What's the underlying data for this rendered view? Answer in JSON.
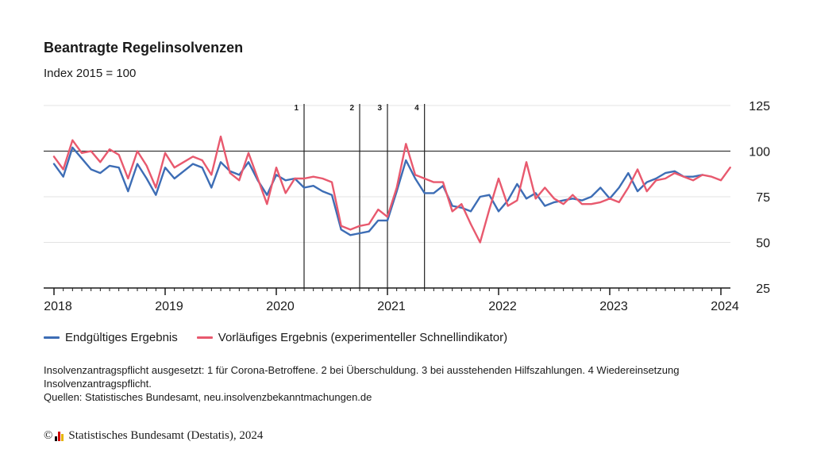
{
  "chart_data": {
    "type": "line",
    "title": "Beantragte Regelinsolvenzen",
    "subtitle": "Index 2015 = 100",
    "x_start": "2018-01",
    "x_tick_labels": [
      "2018",
      "2019",
      "2020",
      "2021",
      "2022",
      "2023",
      "2024"
    ],
    "y_ticks": [
      25,
      50,
      75,
      100,
      125
    ],
    "ylim": [
      25,
      125
    ],
    "y_axis_position": "right",
    "reference_line": 100,
    "annotations": [
      {
        "label": "1",
        "date": "2020-04"
      },
      {
        "label": "2",
        "date": "2020-10"
      },
      {
        "label": "3",
        "date": "2021-01"
      },
      {
        "label": "4",
        "date": "2021-05"
      }
    ],
    "series": [
      {
        "name": "Endgültiges Ergebnis",
        "color": "#3d6db5",
        "start": "2018-01",
        "values": [
          93,
          86,
          102,
          96,
          90,
          88,
          92,
          91,
          78,
          93,
          85,
          76,
          91,
          85,
          89,
          93,
          91,
          80,
          94,
          89,
          87,
          94,
          84,
          76,
          87,
          84,
          85,
          80,
          81,
          78,
          76,
          57,
          54,
          55,
          56,
          62,
          62,
          78,
          95,
          85,
          77,
          77,
          81,
          70,
          69,
          67,
          75,
          76,
          67,
          73,
          82,
          74,
          77,
          70,
          72,
          73,
          74,
          73,
          75,
          80,
          74,
          80,
          88,
          78,
          83,
          85,
          88,
          89,
          86,
          86,
          87
        ]
      },
      {
        "name": "Vorläufiges Ergebnis (experimenteller Schnellindikator)",
        "color": "#e8596e",
        "start": "2018-01",
        "values": [
          97,
          90,
          106,
          99,
          100,
          94,
          101,
          98,
          85,
          100,
          92,
          80,
          99,
          91,
          94,
          97,
          95,
          87,
          108,
          88,
          84,
          99,
          85,
          71,
          91,
          77,
          85,
          85,
          86,
          85,
          83,
          59,
          57,
          59,
          60,
          68,
          64,
          80,
          104,
          87,
          85,
          83,
          83,
          67,
          71,
          60,
          50,
          68,
          85,
          70,
          73,
          94,
          74,
          80,
          74,
          71,
          76,
          71,
          71,
          72,
          74,
          72,
          80,
          90,
          78,
          84,
          85,
          88,
          86,
          84,
          87,
          86,
          84,
          91
        ]
      }
    ]
  },
  "legend": {
    "items": [
      {
        "label": "Endgültiges Ergebnis",
        "color": "#3d6db5"
      },
      {
        "label": "Vorläufiges Ergebnis (experimenteller Schnellindikator)",
        "color": "#e8596e"
      }
    ]
  },
  "notes": {
    "line1": "Insolvenzantragspflicht ausgesetzt: 1 für Corona-Betroffene. 2 bei Überschuldung. 3 bei ausstehenden Hilfszahlungen. 4 Wiedereinsetzung Insolvenzantragspflicht.",
    "line2": "Quellen: Statistisches Bundesamt, neu.insolvenzbekanntmachungen.de"
  },
  "copyright": {
    "symbol": "©",
    "text": "Statistisches Bundesamt (Destatis), 2024",
    "logo_colors": [
      "#000000",
      "#d00000",
      "#e6b400"
    ]
  }
}
